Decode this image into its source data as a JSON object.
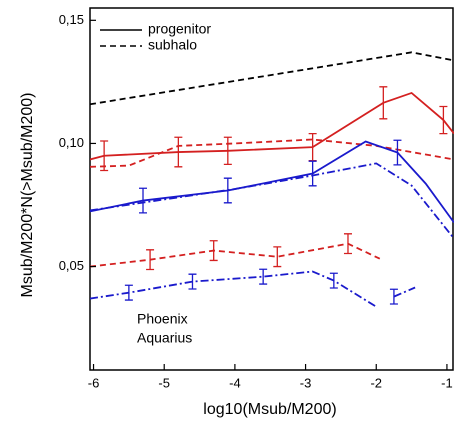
{
  "chart_data": {
    "type": "line",
    "xlabel": "log10(Msub/M200)",
    "ylabel": "Msub/M200*N(>Msub/M200)",
    "xlim": [
      -6.05,
      -0.9
    ],
    "xticks": [
      -6,
      -5,
      -4,
      -3,
      -2,
      -1
    ],
    "ylim": [
      0.008,
      0.155
    ],
    "yticks": [
      {
        "value": 0.05,
        "label": "0,05"
      },
      {
        "value": 0.1,
        "label": "0,10"
      },
      {
        "value": 0.15,
        "label": "0,15"
      }
    ],
    "legend": [
      {
        "name": "progenitor",
        "dash": "solid"
      },
      {
        "name": "subhalo",
        "dash": "dashed"
      }
    ],
    "annotations": [
      {
        "text": "Phoenix",
        "color": "#d42020"
      },
      {
        "text": "Aquarius",
        "color": "#1a1acc"
      }
    ],
    "series": [
      {
        "color": "#000000",
        "dash": "dashed",
        "x": [
          -6.05,
          -1.5,
          -0.9
        ],
        "values": [
          0.1159,
          0.137,
          0.1337
        ]
      },
      {
        "color": "#d42020",
        "dash": "solid",
        "x": [
          -6.05,
          -5.85,
          -4.8,
          -4.1,
          -2.9,
          -1.9,
          -1.5,
          -1.05,
          -0.9
        ],
        "values": [
          0.0935,
          0.095,
          0.0965,
          0.097,
          0.0985,
          0.1165,
          0.1205,
          0.1095,
          0.104
        ],
        "errors": [
          null,
          0.006,
          0.006,
          0.0055,
          0.0055,
          0.0065,
          null,
          0.0055,
          null
        ]
      },
      {
        "color": "#d42020",
        "dash": "dashed",
        "x": [
          -6.05,
          -5.5,
          -4.8,
          -4,
          -2.9,
          -2,
          -0.9
        ],
        "values": [
          0.0905,
          0.091,
          0.099,
          0.1,
          0.1016,
          0.099,
          0.0935
        ]
      },
      {
        "color": "#1a1acc",
        "dash": "solid",
        "x": [
          -6.05,
          -5.3,
          -4.1,
          -2.9,
          -2.15,
          -1.7,
          -1.3,
          -0.9
        ],
        "values": [
          0.0724,
          0.0768,
          0.0809,
          0.0878,
          0.1008,
          0.0963,
          0.0837,
          0.0679
        ],
        "errors": [
          null,
          0.005,
          0.005,
          0.005,
          null,
          0.005,
          null,
          null
        ]
      },
      {
        "color": "#1a1acc",
        "dash": "dashdot",
        "x": [
          -6.05,
          -4,
          -2.9,
          -2,
          -1.5,
          -0.9
        ],
        "values": [
          0.0728,
          0.0815,
          0.087,
          0.0919,
          0.0829,
          0.0614
        ]
      },
      {
        "color": "#d42020",
        "dash": "dashed",
        "x": [
          -6.05,
          -5.2,
          -4.3,
          -3.4,
          -2.4,
          -1.95
        ],
        "values": [
          0.05,
          0.0528,
          0.0565,
          0.054,
          0.0593,
          0.0532
        ],
        "errors": [
          null,
          0.004,
          0.004,
          0.004,
          0.004,
          null
        ]
      },
      {
        "color": "#1a1acc",
        "dash": "dashdot",
        "x": [
          -6.05,
          -5.5,
          -4.6,
          -3.6,
          -2.9,
          -2.6,
          -2,
          -1.9,
          -1.75,
          -1.45
        ],
        "values": [
          0.037,
          0.0394,
          0.0439,
          0.0459,
          0.048,
          0.0443,
          0.0337,
          null,
          0.0378,
          0.0415
        ],
        "errors": [
          null,
          0.003,
          0.003,
          0.003,
          null,
          0.003,
          null,
          null,
          0.003,
          null
        ]
      }
    ]
  }
}
